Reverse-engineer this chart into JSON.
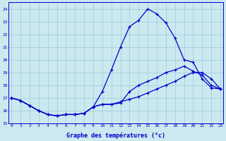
{
  "xlabel": "Graphe des températures (°c)",
  "bg_color": "#cce9f0",
  "grid_color": "#99ccd9",
  "line_color": "#0000cc",
  "xlim": [
    -0.3,
    23.3
  ],
  "ylim": [
    15,
    24.5
  ],
  "yticks": [
    15,
    16,
    17,
    18,
    19,
    20,
    21,
    22,
    23,
    24
  ],
  "xticks": [
    0,
    1,
    2,
    3,
    4,
    5,
    6,
    7,
    8,
    9,
    10,
    11,
    12,
    13,
    14,
    15,
    16,
    17,
    18,
    19,
    20,
    21,
    22,
    23
  ],
  "line1_x": [
    0,
    1,
    2,
    3,
    4,
    5,
    6,
    7,
    8,
    9,
    10,
    11,
    12,
    13,
    14,
    15,
    16,
    17,
    18,
    19,
    20,
    21,
    22,
    23
  ],
  "line1_y": [
    17.0,
    16.8,
    16.4,
    16.0,
    15.7,
    15.6,
    15.7,
    15.7,
    15.8,
    16.3,
    17.5,
    19.2,
    21.0,
    22.6,
    23.1,
    24.0,
    23.6,
    22.9,
    21.7,
    20.0,
    19.8,
    18.5,
    17.8,
    17.7
  ],
  "line2_x": [
    0,
    1,
    2,
    3,
    4,
    5,
    6,
    7,
    8,
    9,
    10,
    11,
    12,
    13,
    14,
    15,
    16,
    17,
    18,
    19,
    20,
    21,
    22,
    23
  ],
  "line2_y": [
    17.0,
    16.8,
    16.4,
    16.0,
    15.7,
    15.6,
    15.7,
    15.7,
    15.8,
    16.3,
    16.5,
    16.5,
    16.6,
    17.5,
    18.0,
    18.3,
    18.6,
    19.0,
    19.2,
    19.5,
    19.1,
    18.8,
    18.0,
    17.7
  ],
  "line3_x": [
    0,
    1,
    2,
    3,
    4,
    5,
    6,
    7,
    8,
    9,
    10,
    11,
    12,
    13,
    14,
    15,
    16,
    17,
    18,
    19,
    20,
    21,
    22,
    23
  ],
  "line3_y": [
    17.0,
    16.8,
    16.4,
    16.0,
    15.7,
    15.6,
    15.7,
    15.7,
    15.8,
    16.3,
    16.5,
    16.5,
    16.7,
    16.9,
    17.1,
    17.4,
    17.7,
    18.0,
    18.3,
    18.7,
    19.0,
    19.0,
    18.5,
    17.7
  ]
}
